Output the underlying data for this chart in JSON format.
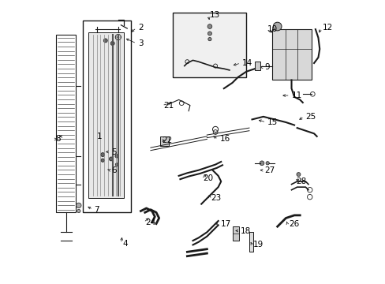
{
  "background_color": "#ffffff",
  "line_color": "#1a1a1a",
  "label_color": "#000000",
  "label_fontsize": 7.5,
  "xmin": 0,
  "xmax": 10.0,
  "ymin": 0,
  "ymax": 10.0
}
